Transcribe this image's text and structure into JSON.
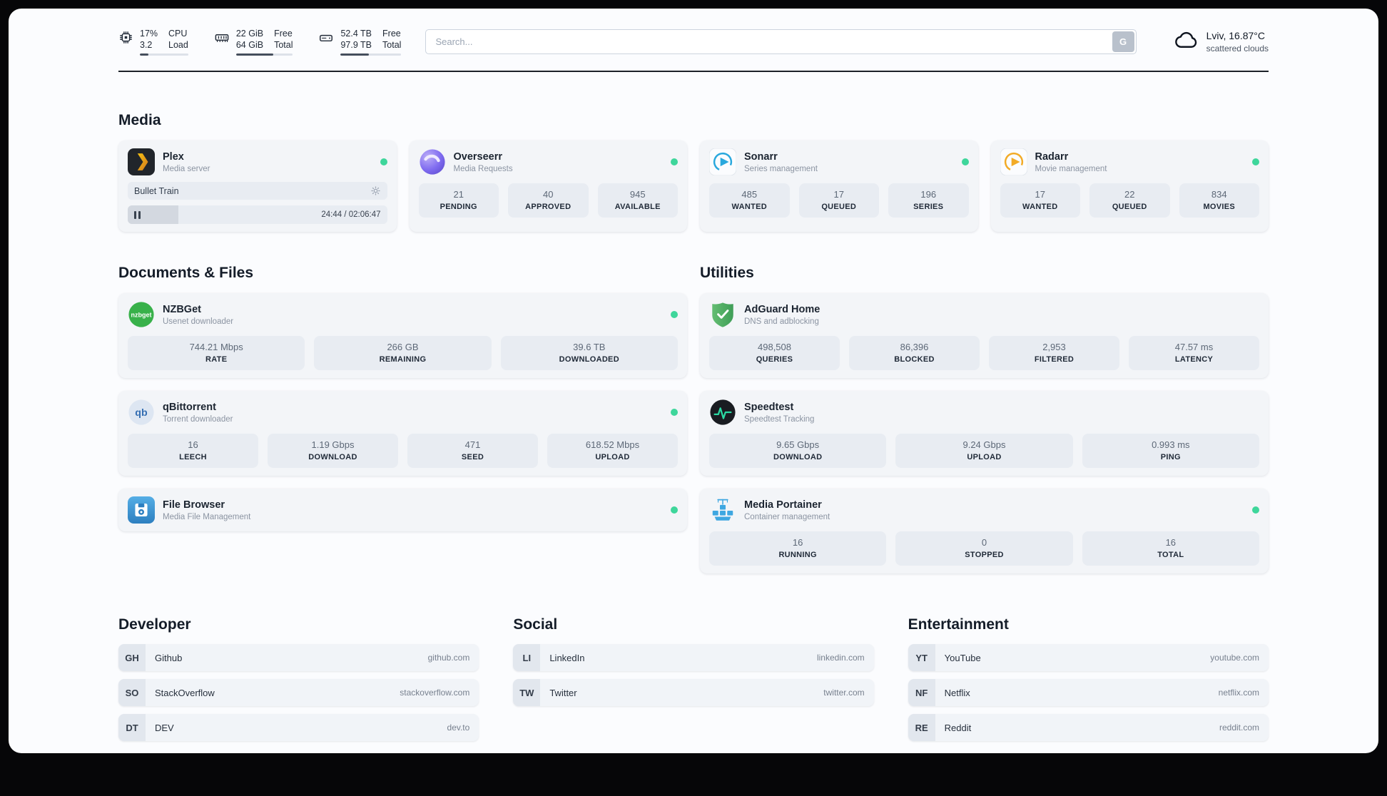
{
  "header": {
    "cpu": {
      "usage": "17%",
      "load": "3.2",
      "label_line1": "CPU",
      "label_line2": "Load",
      "bar_percent": 17
    },
    "memory": {
      "free": "22 GiB",
      "total": "64 GiB",
      "label_line1": "Free",
      "label_line2": "Total",
      "bar_percent": 65
    },
    "disk": {
      "free": "52.4 TB",
      "total": "97.9 TB",
      "label_line1": "Free",
      "label_line2": "Total",
      "bar_percent": 47
    },
    "search": {
      "placeholder": "Search...",
      "button_label": "G"
    },
    "weather": {
      "location": "Lviv, 16.87°C",
      "condition": "scattered clouds"
    },
    "status_color": "#3ed69b"
  },
  "media": {
    "title": "Media",
    "plex": {
      "name": "Plex",
      "subtitle": "Media server",
      "now_playing": "Bullet Train",
      "time_display": "24:44 / 02:06:47",
      "progress_percent": 19.5
    },
    "overseerr": {
      "name": "Overseerr",
      "subtitle": "Media Requests",
      "stats": [
        {
          "value": "21",
          "label": "PENDING"
        },
        {
          "value": "40",
          "label": "APPROVED"
        },
        {
          "value": "945",
          "label": "AVAILABLE"
        }
      ]
    },
    "sonarr": {
      "name": "Sonarr",
      "subtitle": "Series management",
      "stats": [
        {
          "value": "485",
          "label": "WANTED"
        },
        {
          "value": "17",
          "label": "QUEUED"
        },
        {
          "value": "196",
          "label": "SERIES"
        }
      ]
    },
    "radarr": {
      "name": "Radarr",
      "subtitle": "Movie management",
      "stats": [
        {
          "value": "17",
          "label": "WANTED"
        },
        {
          "value": "22",
          "label": "QUEUED"
        },
        {
          "value": "834",
          "label": "MOVIES"
        }
      ]
    }
  },
  "documents": {
    "title": "Documents & Files",
    "nzbget": {
      "name": "NZBGet",
      "subtitle": "Usenet downloader",
      "stats": [
        {
          "value": "744.21 Mbps",
          "label": "RATE"
        },
        {
          "value": "266 GB",
          "label": "REMAINING"
        },
        {
          "value": "39.6 TB",
          "label": "DOWNLOADED"
        }
      ]
    },
    "qbittorrent": {
      "name": "qBittorrent",
      "subtitle": "Torrent downloader",
      "stats": [
        {
          "value": "16",
          "label": "LEECH"
        },
        {
          "value": "1.19 Gbps",
          "label": "DOWNLOAD"
        },
        {
          "value": "471",
          "label": "SEED"
        },
        {
          "value": "618.52 Mbps",
          "label": "UPLOAD"
        }
      ]
    },
    "filebrowser": {
      "name": "File Browser",
      "subtitle": "Media File Management"
    }
  },
  "utilities": {
    "title": "Utilities",
    "adguard": {
      "name": "AdGuard Home",
      "subtitle": "DNS and adblocking",
      "stats": [
        {
          "value": "498,508",
          "label": "QUERIES"
        },
        {
          "value": "86,396",
          "label": "BLOCKED"
        },
        {
          "value": "2,953",
          "label": "FILTERED"
        },
        {
          "value": "47.57 ms",
          "label": "LATENCY"
        }
      ]
    },
    "speedtest": {
      "name": "Speedtest",
      "subtitle": "Speedtest Tracking",
      "stats": [
        {
          "value": "9.65 Gbps",
          "label": "DOWNLOAD"
        },
        {
          "value": "9.24 Gbps",
          "label": "UPLOAD"
        },
        {
          "value": "0.993 ms",
          "label": "PING"
        }
      ]
    },
    "portainer": {
      "name": "Media Portainer",
      "subtitle": "Container management",
      "stats": [
        {
          "value": "16",
          "label": "RUNNING"
        },
        {
          "value": "0",
          "label": "STOPPED"
        },
        {
          "value": "16",
          "label": "TOTAL"
        }
      ]
    }
  },
  "links": {
    "developer": {
      "title": "Developer",
      "items": [
        {
          "abbr": "GH",
          "name": "Github",
          "url": "github.com"
        },
        {
          "abbr": "SO",
          "name": "StackOverflow",
          "url": "stackoverflow.com"
        },
        {
          "abbr": "DT",
          "name": "DEV",
          "url": "dev.to"
        }
      ]
    },
    "social": {
      "title": "Social",
      "items": [
        {
          "abbr": "LI",
          "name": "LinkedIn",
          "url": "linkedin.com"
        },
        {
          "abbr": "TW",
          "name": "Twitter",
          "url": "twitter.com"
        }
      ]
    },
    "entertainment": {
      "title": "Entertainment",
      "items": [
        {
          "abbr": "YT",
          "name": "YouTube",
          "url": "youtube.com"
        },
        {
          "abbr": "NF",
          "name": "Netflix",
          "url": "netflix.com"
        },
        {
          "abbr": "RE",
          "name": "Reddit",
          "url": "reddit.com"
        }
      ]
    }
  }
}
